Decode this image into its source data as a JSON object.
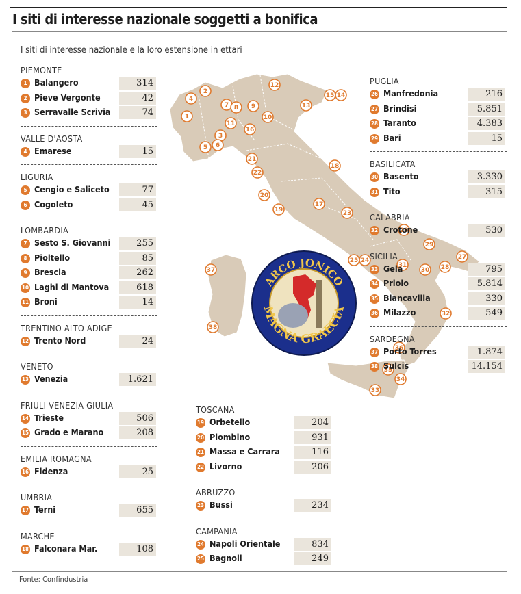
{
  "title": "I siti di interesse nazionale soggetti a bonifica",
  "subtitle": "I siti di interesse nazionale e la loro estensione in ettari",
  "source": "Fonte: Confindustria",
  "logo": {
    "top_text": "ARCO JONICO",
    "bottom_text": "MAGNA GRAECIA"
  },
  "colors": {
    "marker": "#e07a2e",
    "map_fill": "#d9cbb8",
    "value_box": "#eae5dc"
  },
  "chart_data": {
    "type": "table",
    "unit": "ettari",
    "regions": [
      {
        "name": "PIEMONTE",
        "sites": [
          {
            "n": "1",
            "name": "Balangero",
            "value": "314"
          },
          {
            "n": "2",
            "name": "Pieve Vergonte",
            "value": "42"
          },
          {
            "n": "3",
            "name": "Serravalle Scrivia",
            "value": "74"
          }
        ]
      },
      {
        "name": "VALLE D'AOSTA",
        "sites": [
          {
            "n": "4",
            "name": "Emarese",
            "value": "15"
          }
        ]
      },
      {
        "name": "LIGURIA",
        "sites": [
          {
            "n": "5",
            "name": "Cengio e Saliceto",
            "value": "77"
          },
          {
            "n": "6",
            "name": "Cogoleto",
            "value": "45"
          }
        ]
      },
      {
        "name": "LOMBARDIA",
        "sites": [
          {
            "n": "7",
            "name": "Sesto S. Giovanni",
            "value": "255"
          },
          {
            "n": "8",
            "name": "Pioltello",
            "value": "85"
          },
          {
            "n": "9",
            "name": "Brescia",
            "value": "262"
          },
          {
            "n": "10",
            "name": "Laghi di Mantova",
            "value": "618"
          },
          {
            "n": "11",
            "name": "Broni",
            "value": "14"
          }
        ]
      },
      {
        "name": "TRENTINO ALTO ADIGE",
        "sites": [
          {
            "n": "12",
            "name": "Trento Nord",
            "value": "24"
          }
        ]
      },
      {
        "name": "VENETO",
        "sites": [
          {
            "n": "13",
            "name": "Venezia",
            "value": "1.621"
          }
        ]
      },
      {
        "name": "FRIULI VENEZIA GIULIA",
        "sites": [
          {
            "n": "14",
            "name": "Trieste",
            "value": "506"
          },
          {
            "n": "15",
            "name": "Grado e Marano",
            "value": "208"
          }
        ]
      },
      {
        "name": "EMILIA ROMAGNA",
        "sites": [
          {
            "n": "16",
            "name": "Fidenza",
            "value": "25"
          }
        ]
      },
      {
        "name": "UMBRIA",
        "sites": [
          {
            "n": "17",
            "name": "Terni",
            "value": "655"
          }
        ]
      },
      {
        "name": "MARCHE",
        "sites": [
          {
            "n": "18",
            "name": "Falconara Mar.",
            "value": "108"
          }
        ]
      },
      {
        "name": "TOSCANA",
        "sites": [
          {
            "n": "19",
            "name": "Orbetello",
            "value": "204"
          },
          {
            "n": "20",
            "name": "Piombino",
            "value": "931"
          },
          {
            "n": "21",
            "name": "Massa e Carrara",
            "value": "116"
          },
          {
            "n": "22",
            "name": "Livorno",
            "value": "206"
          }
        ]
      },
      {
        "name": "ABRUZZO",
        "sites": [
          {
            "n": "23",
            "name": "Bussi",
            "value": "234"
          }
        ]
      },
      {
        "name": "CAMPANIA",
        "sites": [
          {
            "n": "24",
            "name": "Napoli Orientale",
            "value": "834"
          },
          {
            "n": "25",
            "name": "Bagnoli",
            "value": "249"
          }
        ]
      },
      {
        "name": "PUGLIA",
        "sites": [
          {
            "n": "26",
            "name": "Manfredonia",
            "value": "216"
          },
          {
            "n": "27",
            "name": "Brindisi",
            "value": "5.851"
          },
          {
            "n": "28",
            "name": "Taranto",
            "value": "4.383"
          },
          {
            "n": "29",
            "name": "Bari",
            "value": "15"
          }
        ]
      },
      {
        "name": "BASILICATA",
        "sites": [
          {
            "n": "30",
            "name": "Basento",
            "value": "3.330"
          },
          {
            "n": "31",
            "name": "Tito",
            "value": "315"
          }
        ]
      },
      {
        "name": "CALABRIA",
        "sites": [
          {
            "n": "32",
            "name": "Crotone",
            "value": "530"
          }
        ]
      },
      {
        "name": "SICILIA",
        "sites": [
          {
            "n": "33",
            "name": "Gela",
            "value": "795"
          },
          {
            "n": "34",
            "name": "Priolo",
            "value": "5.814"
          },
          {
            "n": "35",
            "name": "Biancavilla",
            "value": "330"
          },
          {
            "n": "36",
            "name": "Milazzo",
            "value": "549"
          }
        ]
      },
      {
        "name": "SARDEGNA",
        "sites": [
          {
            "n": "37",
            "name": "Porto Torres",
            "value": "1.874"
          },
          {
            "n": "38",
            "name": "Sulcis",
            "value": "14.154"
          }
        ]
      }
    ],
    "map_markers": [
      "1",
      "2",
      "3",
      "4",
      "5",
      "6",
      "7",
      "8",
      "9",
      "10",
      "11",
      "12",
      "13",
      "14",
      "15",
      "16",
      "17",
      "18",
      "19",
      "20",
      "21",
      "22",
      "23",
      "24",
      "25",
      "26",
      "27",
      "28",
      "29",
      "30",
      "31",
      "32",
      "33",
      "34",
      "35",
      "36",
      "37",
      "38"
    ]
  }
}
